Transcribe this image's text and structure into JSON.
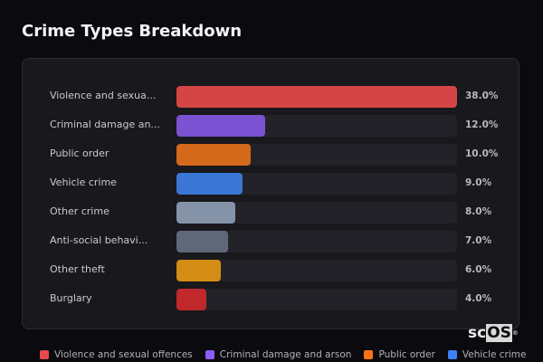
{
  "title": "Crime Types Breakdown",
  "rows": [
    {
      "label": "Violence and sexua...",
      "value": "38.0%",
      "pct": 38.0,
      "color": "#d64545"
    },
    {
      "label": "Criminal damage an...",
      "value": "12.0%",
      "pct": 12.0,
      "color": "#7b52d1"
    },
    {
      "label": "Public order",
      "value": "10.0%",
      "pct": 10.0,
      "color": "#d4691c"
    },
    {
      "label": "Vehicle crime",
      "value": "9.0%",
      "pct": 9.0,
      "color": "#3a76d6"
    },
    {
      "label": "Other crime",
      "value": "8.0%",
      "pct": 8.0,
      "color": "#8593a8"
    },
    {
      "label": "Anti-social behavi...",
      "value": "7.0%",
      "pct": 7.0,
      "color": "#5f6878"
    },
    {
      "label": "Other theft",
      "value": "6.0%",
      "pct": 6.0,
      "color": "#d38d14"
    },
    {
      "label": "Burglary",
      "value": "4.0%",
      "pct": 4.0,
      "color": "#c0282c"
    }
  ],
  "legend": [
    {
      "label": "Violence and sexual offences",
      "color": "#e5484d"
    },
    {
      "label": "Criminal damage and arson",
      "color": "#8b5cf6"
    },
    {
      "label": "Public order",
      "color": "#f97316"
    },
    {
      "label": "Vehicle crime",
      "color": "#3b82f6"
    }
  ],
  "logo": {
    "prefix": "sc",
    "boxed": "OS",
    "reg": "®"
  },
  "chart_data": {
    "type": "bar",
    "orientation": "horizontal",
    "title": "Crime Types Breakdown",
    "categories": [
      "Violence and sexual offences",
      "Criminal damage and arson",
      "Public order",
      "Vehicle crime",
      "Other crime",
      "Anti-social behaviour",
      "Other theft",
      "Burglary"
    ],
    "values": [
      38.0,
      12.0,
      10.0,
      9.0,
      8.0,
      7.0,
      6.0,
      4.0
    ],
    "unit": "%",
    "xlabel": "",
    "ylabel": "",
    "xlim": [
      0,
      38
    ],
    "grid": false,
    "legend_position": "bottom",
    "legend": [
      "Violence and sexual offences",
      "Criminal damage and arson",
      "Public order",
      "Vehicle crime"
    ]
  }
}
